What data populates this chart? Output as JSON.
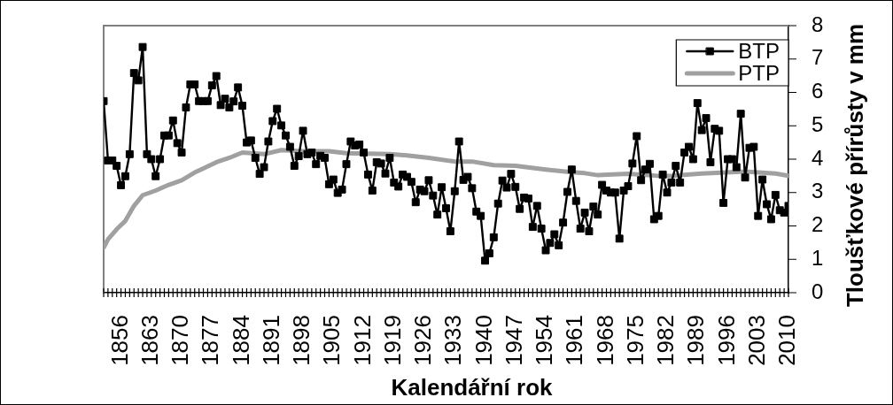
{
  "chart_data": {
    "type": "line",
    "xlabel": "Kalendářní rok",
    "ylabel": "Tloušťkové přírůsty v mm",
    "x": [
      1852,
      1853,
      1854,
      1855,
      1856,
      1857,
      1858,
      1859,
      1860,
      1861,
      1862,
      1863,
      1864,
      1865,
      1866,
      1867,
      1868,
      1869,
      1870,
      1871,
      1872,
      1873,
      1874,
      1875,
      1876,
      1877,
      1878,
      1879,
      1880,
      1881,
      1882,
      1883,
      1884,
      1885,
      1886,
      1887,
      1888,
      1889,
      1890,
      1891,
      1892,
      1893,
      1894,
      1895,
      1896,
      1897,
      1898,
      1899,
      1900,
      1901,
      1902,
      1903,
      1904,
      1905,
      1906,
      1907,
      1908,
      1909,
      1910,
      1911,
      1912,
      1913,
      1914,
      1915,
      1916,
      1917,
      1918,
      1919,
      1920,
      1921,
      1922,
      1923,
      1924,
      1925,
      1926,
      1927,
      1928,
      1929,
      1930,
      1931,
      1932,
      1933,
      1934,
      1935,
      1936,
      1937,
      1938,
      1939,
      1940,
      1941,
      1942,
      1943,
      1944,
      1945,
      1946,
      1947,
      1948,
      1949,
      1950,
      1951,
      1952,
      1953,
      1954,
      1955,
      1956,
      1957,
      1958,
      1959,
      1960,
      1961,
      1962,
      1963,
      1964,
      1965,
      1966,
      1967,
      1968,
      1969,
      1970,
      1971,
      1972,
      1973,
      1974,
      1975,
      1976,
      1977,
      1978,
      1979,
      1980,
      1981,
      1982,
      1983,
      1984,
      1985,
      1986,
      1987,
      1988,
      1989,
      1990,
      1991,
      1992,
      1993,
      1994,
      1995,
      1996,
      1997,
      1998,
      1999,
      2000,
      2001,
      2002,
      2003,
      2004,
      2005,
      2006,
      2007,
      2008,
      2009,
      2010
    ],
    "series": [
      {
        "name": "BTP",
        "color": "#000000",
        "marker": "square",
        "line_style": "solid",
        "values": [
          5.74,
          3.96,
          3.96,
          3.8,
          3.22,
          3.49,
          4.15,
          6.58,
          6.36,
          7.36,
          4.15,
          4.0,
          3.49,
          4.0,
          4.71,
          4.71,
          5.16,
          4.48,
          4.2,
          5.55,
          6.24,
          6.24,
          5.74,
          5.74,
          5.74,
          6.21,
          6.49,
          5.62,
          5.81,
          5.55,
          5.73,
          6.15,
          5.6,
          4.5,
          4.56,
          4.04,
          3.56,
          3.76,
          4.53,
          5.14,
          5.51,
          5.01,
          4.71,
          4.37,
          3.8,
          4.09,
          4.85,
          4.15,
          4.2,
          3.85,
          4.1,
          4.04,
          3.25,
          3.39,
          2.99,
          3.09,
          3.85,
          4.53,
          4.41,
          4.44,
          4.2,
          3.54,
          3.06,
          3.91,
          3.87,
          3.57,
          4.04,
          3.3,
          3.18,
          3.54,
          3.47,
          3.32,
          2.71,
          3.09,
          3.04,
          3.37,
          2.91,
          2.34,
          3.16,
          2.53,
          1.84,
          3.04,
          4.53,
          3.38,
          3.47,
          3.13,
          2.43,
          2.3,
          0.96,
          1.18,
          1.66,
          2.67,
          3.36,
          3.15,
          3.56,
          3.17,
          2.51,
          2.85,
          2.82,
          1.97,
          2.6,
          1.92,
          1.27,
          1.49,
          1.75,
          1.42,
          2.1,
          3.02,
          3.69,
          2.75,
          1.92,
          2.4,
          1.84,
          2.58,
          2.34,
          3.23,
          3.06,
          3.0,
          3.0,
          1.62,
          3.06,
          3.19,
          3.87,
          4.69,
          3.37,
          3.69,
          3.86,
          2.2,
          2.3,
          3.54,
          3.0,
          3.3,
          3.8,
          3.3,
          4.2,
          4.37,
          4.0,
          5.68,
          4.87,
          5.23,
          3.91,
          4.91,
          4.85,
          2.69,
          4.0,
          4.0,
          3.76,
          5.36,
          3.45,
          4.34,
          4.37,
          2.3,
          3.39,
          2.65,
          2.2,
          2.93,
          2.47,
          2.4,
          2.6
        ]
      },
      {
        "name": "PTP",
        "color": "#a0a0a0",
        "marker": "none",
        "line_style": "solid",
        "x": [
          1852,
          1853,
          1855,
          1857,
          1859,
          1861,
          1864,
          1867,
          1870,
          1873,
          1875,
          1878,
          1881,
          1884,
          1889,
          1893,
          1898,
          1904,
          1908,
          1918,
          1922,
          1927,
          1933,
          1937,
          1942,
          1947,
          1954,
          1960,
          1963,
          1966,
          1973,
          1980,
          1983,
          1990,
          2000,
          2007,
          2010
        ],
        "values": [
          1.35,
          1.6,
          1.9,
          2.15,
          2.6,
          2.92,
          3.06,
          3.23,
          3.37,
          3.6,
          3.72,
          3.91,
          4.04,
          4.2,
          4.15,
          4.27,
          4.24,
          4.24,
          4.18,
          4.15,
          4.11,
          4.04,
          3.93,
          3.93,
          3.82,
          3.8,
          3.69,
          3.61,
          3.58,
          3.52,
          3.56,
          3.5,
          3.5,
          3.57,
          3.63,
          3.57,
          3.5
        ]
      }
    ],
    "xlim": [
      1852,
      2010
    ],
    "xticks": [
      {
        "value": 1852,
        "label": null
      },
      {
        "value": 1853,
        "label": null
      },
      {
        "value": 1854,
        "label": null
      },
      {
        "value": 1855,
        "label": null
      },
      1856,
      {
        "value": 1857,
        "label": null
      },
      {
        "value": 1858,
        "label": null
      },
      {
        "value": 1859,
        "label": null
      },
      {
        "value": 1860,
        "label": null
      },
      {
        "value": 1861,
        "label": null
      },
      {
        "value": 1862,
        "label": null
      },
      1863,
      {
        "value": 1864,
        "label": null
      },
      {
        "value": 1865,
        "label": null
      },
      {
        "value": 1866,
        "label": null
      },
      {
        "value": 1867,
        "label": null
      },
      {
        "value": 1868,
        "label": null
      },
      {
        "value": 1869,
        "label": null
      },
      1870,
      {
        "value": 1871,
        "label": null
      },
      {
        "value": 1872,
        "label": null
      },
      {
        "value": 1873,
        "label": null
      },
      {
        "value": 1874,
        "label": null
      },
      {
        "value": 1875,
        "label": null
      },
      {
        "value": 1876,
        "label": null
      },
      1877,
      {
        "value": 1878,
        "label": null
      },
      {
        "value": 1879,
        "label": null
      },
      {
        "value": 1880,
        "label": null
      },
      {
        "value": 1881,
        "label": null
      },
      {
        "value": 1882,
        "label": null
      },
      {
        "value": 1883,
        "label": null
      },
      1884,
      {
        "value": 1885,
        "label": null
      },
      {
        "value": 1886,
        "label": null
      },
      {
        "value": 1887,
        "label": null
      },
      {
        "value": 1888,
        "label": null
      },
      {
        "value": 1889,
        "label": null
      },
      {
        "value": 1890,
        "label": null
      },
      1891,
      {
        "value": 1892,
        "label": null
      },
      {
        "value": 1893,
        "label": null
      },
      {
        "value": 1894,
        "label": null
      },
      {
        "value": 1895,
        "label": null
      },
      {
        "value": 1896,
        "label": null
      },
      {
        "value": 1897,
        "label": null
      },
      1898,
      {
        "value": 1899,
        "label": null
      },
      {
        "value": 1900,
        "label": null
      },
      {
        "value": 1901,
        "label": null
      },
      {
        "value": 1902,
        "label": null
      },
      {
        "value": 1903,
        "label": null
      },
      {
        "value": 1904,
        "label": null
      },
      1905,
      {
        "value": 1906,
        "label": null
      },
      {
        "value": 1907,
        "label": null
      },
      {
        "value": 1908,
        "label": null
      },
      {
        "value": 1909,
        "label": null
      },
      {
        "value": 1910,
        "label": null
      },
      {
        "value": 1911,
        "label": null
      },
      1912,
      {
        "value": 1913,
        "label": null
      },
      {
        "value": 1914,
        "label": null
      },
      {
        "value": 1915,
        "label": null
      },
      {
        "value": 1916,
        "label": null
      },
      {
        "value": 1917,
        "label": null
      },
      {
        "value": 1918,
        "label": null
      },
      1919,
      {
        "value": 1920,
        "label": null
      },
      {
        "value": 1921,
        "label": null
      },
      {
        "value": 1922,
        "label": null
      },
      {
        "value": 1923,
        "label": null
      },
      {
        "value": 1924,
        "label": null
      },
      {
        "value": 1925,
        "label": null
      },
      1926,
      {
        "value": 1927,
        "label": null
      },
      {
        "value": 1928,
        "label": null
      },
      {
        "value": 1929,
        "label": null
      },
      {
        "value": 1930,
        "label": null
      },
      {
        "value": 1931,
        "label": null
      },
      {
        "value": 1932,
        "label": null
      },
      1933,
      {
        "value": 1934,
        "label": null
      },
      {
        "value": 1935,
        "label": null
      },
      {
        "value": 1936,
        "label": null
      },
      {
        "value": 1937,
        "label": null
      },
      {
        "value": 1938,
        "label": null
      },
      {
        "value": 1939,
        "label": null
      },
      1940,
      {
        "value": 1941,
        "label": null
      },
      {
        "value": 1942,
        "label": null
      },
      {
        "value": 1943,
        "label": null
      },
      {
        "value": 1944,
        "label": null
      },
      {
        "value": 1945,
        "label": null
      },
      {
        "value": 1946,
        "label": null
      },
      1947,
      {
        "value": 1948,
        "label": null
      },
      {
        "value": 1949,
        "label": null
      },
      {
        "value": 1950,
        "label": null
      },
      {
        "value": 1951,
        "label": null
      },
      {
        "value": 1952,
        "label": null
      },
      {
        "value": 1953,
        "label": null
      },
      1954,
      {
        "value": 1955,
        "label": null
      },
      {
        "value": 1956,
        "label": null
      },
      {
        "value": 1957,
        "label": null
      },
      {
        "value": 1958,
        "label": null
      },
      {
        "value": 1959,
        "label": null
      },
      {
        "value": 1960,
        "label": null
      },
      1961,
      {
        "value": 1962,
        "label": null
      },
      {
        "value": 1963,
        "label": null
      },
      {
        "value": 1964,
        "label": null
      },
      {
        "value": 1965,
        "label": null
      },
      {
        "value": 1966,
        "label": null
      },
      {
        "value": 1967,
        "label": null
      },
      1968,
      {
        "value": 1969,
        "label": null
      },
      {
        "value": 1970,
        "label": null
      },
      {
        "value": 1971,
        "label": null
      },
      {
        "value": 1972,
        "label": null
      },
      {
        "value": 1973,
        "label": null
      },
      {
        "value": 1974,
        "label": null
      },
      1975,
      {
        "value": 1976,
        "label": null
      },
      {
        "value": 1977,
        "label": null
      },
      {
        "value": 1978,
        "label": null
      },
      {
        "value": 1979,
        "label": null
      },
      {
        "value": 1980,
        "label": null
      },
      {
        "value": 1981,
        "label": null
      },
      1982,
      {
        "value": 1983,
        "label": null
      },
      {
        "value": 1984,
        "label": null
      },
      {
        "value": 1985,
        "label": null
      },
      {
        "value": 1986,
        "label": null
      },
      {
        "value": 1987,
        "label": null
      },
      {
        "value": 1988,
        "label": null
      },
      1989,
      {
        "value": 1990,
        "label": null
      },
      {
        "value": 1991,
        "label": null
      },
      {
        "value": 1992,
        "label": null
      },
      {
        "value": 1993,
        "label": null
      },
      {
        "value": 1994,
        "label": null
      },
      {
        "value": 1995,
        "label": null
      },
      1996,
      {
        "value": 1997,
        "label": null
      },
      {
        "value": 1998,
        "label": null
      },
      {
        "value": 1999,
        "label": null
      },
      {
        "value": 2000,
        "label": null
      },
      {
        "value": 2001,
        "label": null
      },
      {
        "value": 2002,
        "label": null
      },
      2003,
      {
        "value": 2004,
        "label": null
      },
      {
        "value": 2005,
        "label": null
      },
      {
        "value": 2006,
        "label": null
      },
      {
        "value": 2007,
        "label": null
      },
      {
        "value": 2008,
        "label": null
      },
      {
        "value": 2009,
        "label": null
      },
      2010
    ],
    "ylim": [
      0,
      8
    ],
    "yticks": [
      0,
      1,
      2,
      3,
      4,
      5,
      6,
      7,
      8
    ],
    "grid": false,
    "legend": "top right"
  }
}
